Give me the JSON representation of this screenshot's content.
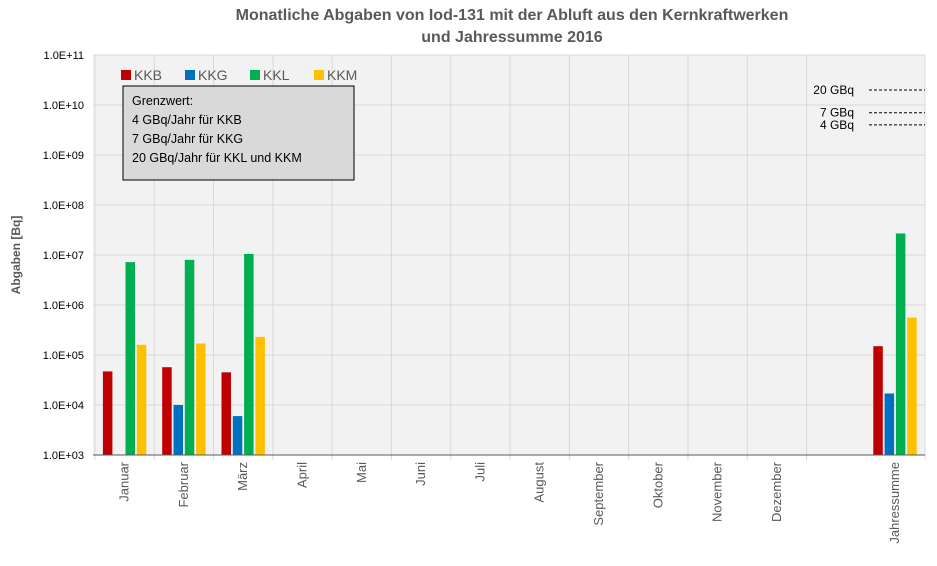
{
  "chart_data": {
    "type": "bar",
    "title_lines": [
      "Monatliche Abgaben von Iod-131 mit der Abluft aus den Kernkraftwerken",
      "und Jahressumme 2016"
    ],
    "ylabel": "Abgaben [Bq]",
    "xlabel": "",
    "yscale": "log",
    "ylim": [
      1000,
      100000000000
    ],
    "yticks": [
      {
        "value": 1000,
        "label": "1.0E+03"
      },
      {
        "value": 10000,
        "label": "1.0E+04"
      },
      {
        "value": 100000,
        "label": "1.0E+05"
      },
      {
        "value": 1000000,
        "label": "1.0E+06"
      },
      {
        "value": 10000000,
        "label": "1.0E+07"
      },
      {
        "value": 100000000,
        "label": "1.0E+08"
      },
      {
        "value": 1000000000,
        "label": "1.0E+09"
      },
      {
        "value": 10000000000,
        "label": "1.0E+10"
      },
      {
        "value": 100000000000,
        "label": "1.0E+11"
      }
    ],
    "grid": true,
    "categories": [
      "Januar",
      "Februar",
      "März",
      "April",
      "Mai",
      "Juni",
      "Juli",
      "August",
      "September",
      "Oktober",
      "November",
      "Dezember",
      "Jahressumme"
    ],
    "series": [
      {
        "name": "KKB",
        "color": "#C00000",
        "values": [
          47000,
          57000,
          45000,
          null,
          null,
          null,
          null,
          null,
          null,
          null,
          null,
          null,
          150000
        ]
      },
      {
        "name": "KKG",
        "color": "#0070C0",
        "values": [
          null,
          10000,
          6000,
          null,
          null,
          null,
          null,
          null,
          null,
          null,
          null,
          null,
          17000
        ]
      },
      {
        "name": "KKL",
        "color": "#00B050",
        "values": [
          7200000,
          8000000,
          10500000,
          null,
          null,
          null,
          null,
          null,
          null,
          null,
          null,
          null,
          27000000
        ]
      },
      {
        "name": "KKM",
        "color": "#FFC000",
        "values": [
          160000,
          170000,
          230000,
          null,
          null,
          null,
          null,
          null,
          null,
          null,
          null,
          null,
          560000
        ]
      }
    ],
    "legend_position": "top-left",
    "note": {
      "lines": [
        "Grenzwert:",
        "4 GBq/Jahr für KKB",
        "7 GBq/Jahr für  KKG",
        "20 GBq/Jahr für KKL und KKM"
      ]
    },
    "limit_lines": [
      {
        "label": "20 GBq",
        "value": 20000000000
      },
      {
        "label": "7 GBq",
        "value": 7000000000
      },
      {
        "label": "4 GBq",
        "value": 4000000000
      }
    ]
  }
}
